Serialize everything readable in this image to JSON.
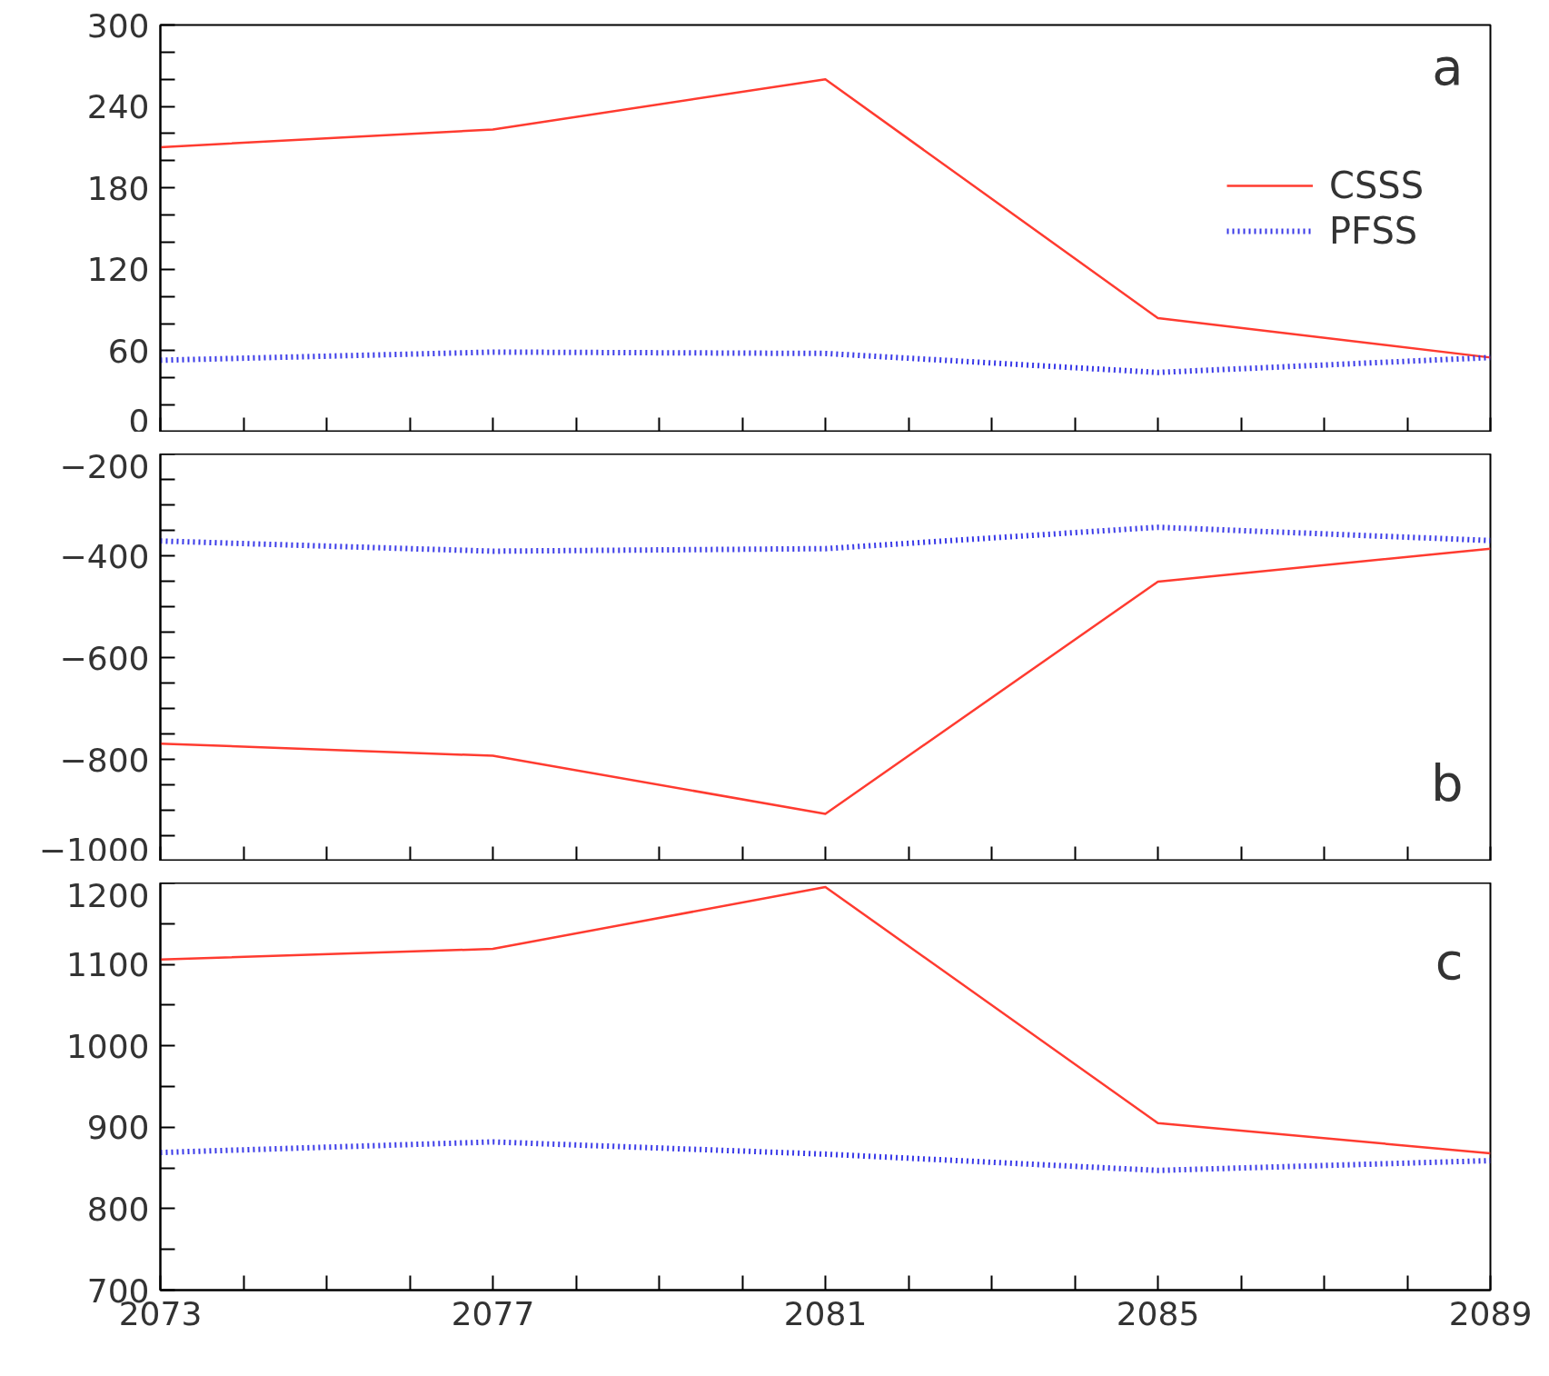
{
  "chart_data": [
    {
      "type": "line",
      "x": [
        2073,
        2077,
        2081,
        2085,
        2089
      ],
      "series": [
        {
          "name": "CSSS",
          "color": "#ff3b30",
          "values": [
            210,
            223,
            260,
            84,
            55
          ],
          "line_style": "solid"
        },
        {
          "name": "PFSS",
          "color": "#3a3ae8",
          "values": [
            53,
            59,
            58,
            44,
            55
          ],
          "line_style": "dotted"
        }
      ],
      "xlim": [
        2073,
        2089
      ],
      "xticks": [
        2073,
        {
          "value": 2074,
          "label": null
        },
        {
          "value": 2075,
          "label": null
        },
        {
          "value": 2076,
          "label": null
        },
        2077,
        {
          "value": 2078,
          "label": null
        },
        {
          "value": 2079,
          "label": null
        },
        {
          "value": 2080,
          "label": null
        },
        2081,
        {
          "value": 2082,
          "label": null
        },
        {
          "value": 2083,
          "label": null
        },
        {
          "value": 2084,
          "label": null
        },
        2085,
        {
          "value": 2086,
          "label": null
        },
        {
          "value": 2087,
          "label": null
        },
        {
          "value": 2088,
          "label": null
        },
        2089
      ],
      "ylim": [
        0,
        300
      ],
      "yticks": [
        0,
        {
          "value": 20,
          "label": null
        },
        {
          "value": 40,
          "label": null
        },
        60,
        {
          "value": 80,
          "label": null
        },
        {
          "value": 100,
          "label": null
        },
        120,
        {
          "value": 140,
          "label": null
        },
        {
          "value": 160,
          "label": null
        },
        180,
        {
          "value": 200,
          "label": null
        },
        {
          "value": 220,
          "label": null
        },
        240,
        {
          "value": 260,
          "label": null
        },
        {
          "value": 280,
          "label": null
        },
        300
      ],
      "tick_labels": "y",
      "legend": "top right",
      "grid": false,
      "annotations": [
        "a"
      ]
    },
    {
      "type": "line",
      "x": [
        2073,
        2077,
        2081,
        2085,
        2089
      ],
      "series": [
        {
          "color": "#ff3b30",
          "values": [
            -769,
            -793,
            -907,
            -451,
            -386
          ],
          "line_style": "solid"
        },
        {
          "color": "#3a3ae8",
          "values": [
            -371,
            -391,
            -386,
            -344,
            -370
          ],
          "line_style": "dotted"
        }
      ],
      "xlim": [
        2073,
        2089
      ],
      "xticks": [
        2073,
        {
          "value": 2074,
          "label": null
        },
        {
          "value": 2075,
          "label": null
        },
        {
          "value": 2076,
          "label": null
        },
        2077,
        {
          "value": 2078,
          "label": null
        },
        {
          "value": 2079,
          "label": null
        },
        {
          "value": 2080,
          "label": null
        },
        2081,
        {
          "value": 2082,
          "label": null
        },
        {
          "value": 2083,
          "label": null
        },
        {
          "value": 2084,
          "label": null
        },
        2085,
        {
          "value": 2086,
          "label": null
        },
        {
          "value": 2087,
          "label": null
        },
        {
          "value": 2088,
          "label": null
        },
        2089
      ],
      "ylim": [
        -1000,
        -200
      ],
      "yticks": [
        -1000,
        {
          "value": -950,
          "label": null
        },
        {
          "value": -900,
          "label": null
        },
        {
          "value": -850,
          "label": null
        },
        -800,
        {
          "value": -750,
          "label": null
        },
        {
          "value": -700,
          "label": null
        },
        {
          "value": -650,
          "label": null
        },
        -600,
        {
          "value": -550,
          "label": null
        },
        {
          "value": -500,
          "label": null
        },
        {
          "value": -450,
          "label": null
        },
        -400,
        {
          "value": -350,
          "label": null
        },
        {
          "value": -300,
          "label": null
        },
        {
          "value": -250,
          "label": null
        },
        -200
      ],
      "tick_labels": "y",
      "grid": false,
      "annotations": [
        "b"
      ]
    },
    {
      "type": "line",
      "x": [
        2073,
        2077,
        2081,
        2085,
        2089
      ],
      "series": [
        {
          "color": "#ff3b30",
          "values": [
            1106,
            1119,
            1195,
            905,
            868
          ],
          "line_style": "solid"
        },
        {
          "color": "#3a3ae8",
          "values": [
            869,
            882,
            867,
            847,
            859
          ],
          "line_style": "dotted"
        }
      ],
      "xlim": [
        2073,
        2089
      ],
      "xticks": [
        2073,
        {
          "value": 2074,
          "label": null
        },
        {
          "value": 2075,
          "label": null
        },
        {
          "value": 2076,
          "label": null
        },
        2077,
        {
          "value": 2078,
          "label": null
        },
        {
          "value": 2079,
          "label": null
        },
        {
          "value": 2080,
          "label": null
        },
        2081,
        {
          "value": 2082,
          "label": null
        },
        {
          "value": 2083,
          "label": null
        },
        {
          "value": 2084,
          "label": null
        },
        2085,
        {
          "value": 2086,
          "label": null
        },
        {
          "value": 2087,
          "label": null
        },
        {
          "value": 2088,
          "label": null
        },
        2089
      ],
      "ylim": [
        700,
        1200
      ],
      "yticks": [
        700,
        {
          "value": 750,
          "label": null
        },
        800,
        {
          "value": 850,
          "label": null
        },
        900,
        {
          "value": 950,
          "label": null
        },
        1000,
        {
          "value": 1050,
          "label": null
        },
        1100,
        {
          "value": 1150,
          "label": null
        },
        1200
      ],
      "grid": false,
      "annotations": [
        "c"
      ]
    }
  ]
}
